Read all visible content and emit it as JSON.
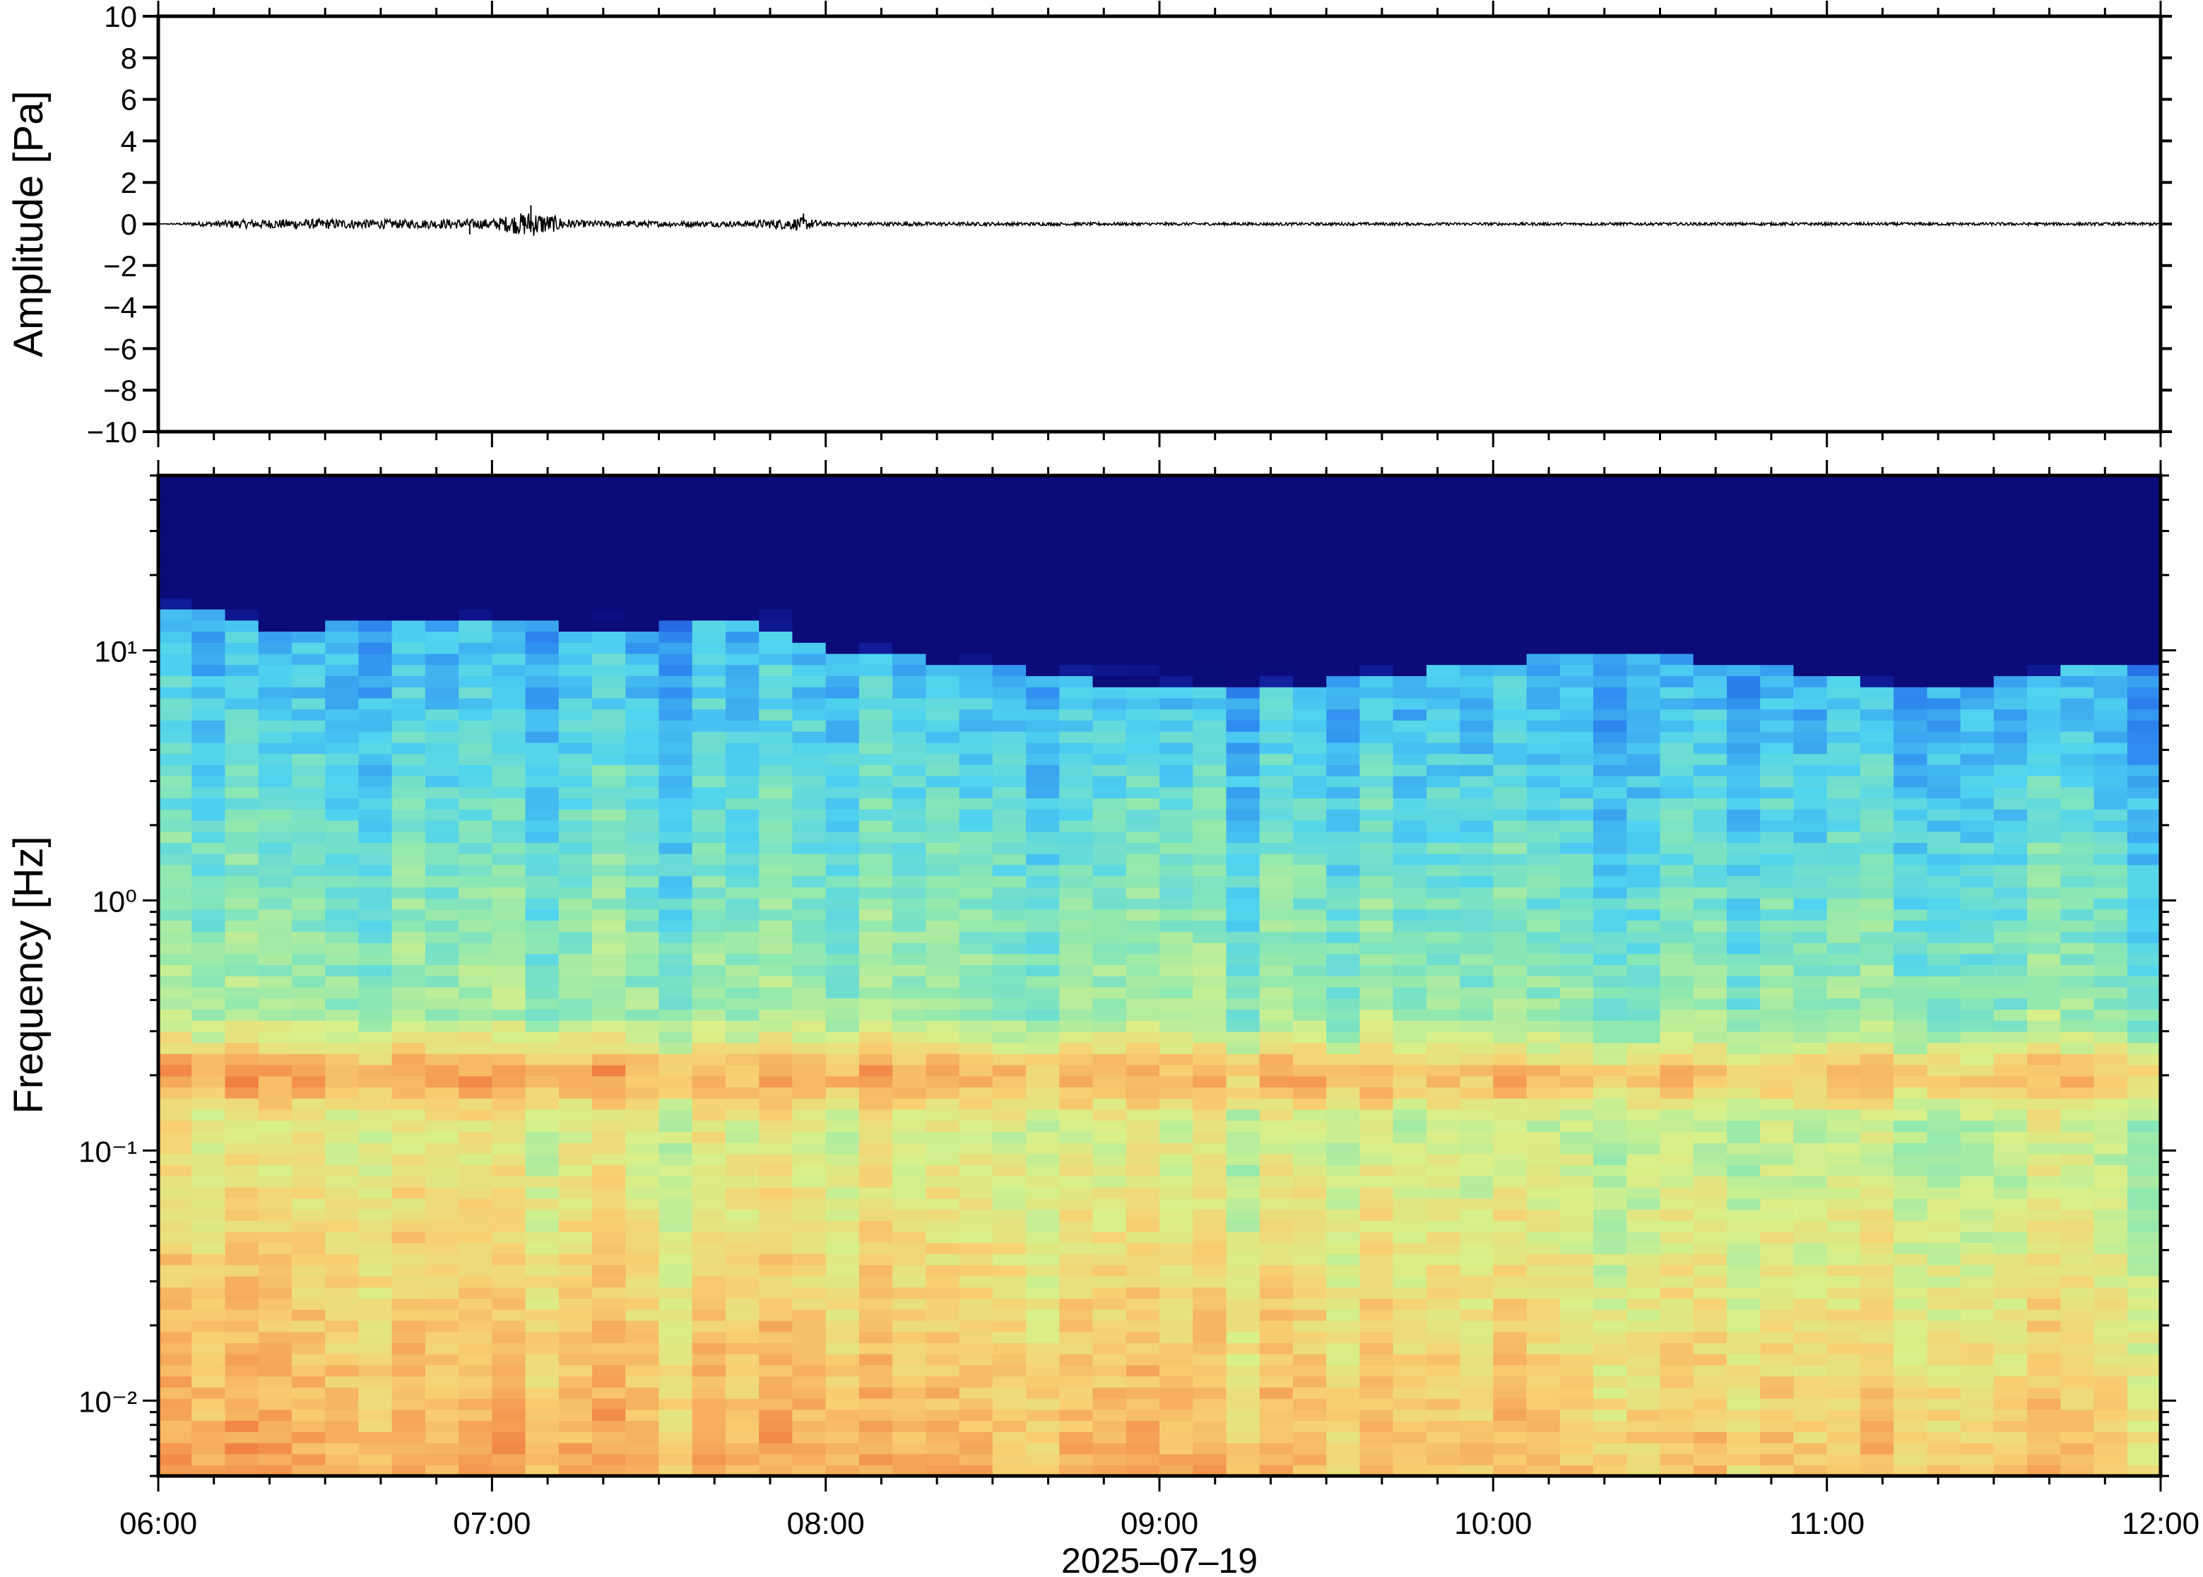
{
  "chart_data": [
    {
      "type": "line",
      "panel": "waveform",
      "ylabel": "Amplitude [Pa]",
      "ylim": [
        -10,
        10
      ],
      "yticks": [
        10,
        8,
        6,
        4,
        2,
        0,
        -2,
        -4,
        -6,
        -8,
        -10
      ],
      "ytick_labels": [
        "10",
        "8",
        "6",
        "4",
        "2",
        "0",
        "−2",
        "−4",
        "−6",
        "−8",
        "−10"
      ],
      "x_range": [
        "2025-07-19 06:00",
        "2025-07-19 12:00"
      ],
      "series": [
        {
          "x": [
            "06:00",
            "06:15",
            "06:30",
            "06:45",
            "07:00",
            "07:07",
            "07:15",
            "07:30",
            "07:45",
            "07:56",
            "08:00",
            "08:30",
            "09:00",
            "09:30",
            "10:00",
            "10:30",
            "11:00",
            "11:30",
            "12:00"
          ],
          "y": [
            0.0,
            0.3,
            0.35,
            0.3,
            0.35,
            0.9,
            0.25,
            0.2,
            0.2,
            0.45,
            0.15,
            0.12,
            0.1,
            0.1,
            0.1,
            0.1,
            0.1,
            0.1,
            0.1
          ]
        }
      ],
      "line_color": "#000000"
    },
    {
      "type": "heatmap",
      "panel": "spectrogram",
      "ylabel": "Frequency [Hz]",
      "yscale": "log",
      "ylim": [
        0.005,
        50
      ],
      "yticks": [
        0.01,
        0.1,
        1,
        10
      ],
      "ytick_labels": [
        "10⁻²",
        "10⁻¹",
        "10⁰",
        "10¹"
      ],
      "xlabel": "2025–07–19",
      "xticks": [
        "06:00",
        "07:00",
        "08:00",
        "09:00",
        "10:00",
        "11:00",
        "12:00"
      ],
      "x_range": [
        "2025-07-19 06:00",
        "2025-07-19 12:00"
      ],
      "colormap": [
        "#0b0b7a",
        "#1a3fd6",
        "#2f8df0",
        "#4fd3f0",
        "#8ee8b0",
        "#d8f08a",
        "#f8d070",
        "#f49a50",
        "#e8502a"
      ],
      "microbaram_peak_hz": 0.2,
      "high_freq_cutoff_hz": [
        15,
        12,
        14,
        13,
        12,
        14,
        10,
        9,
        8,
        7,
        7,
        8,
        9,
        10,
        9,
        8,
        7,
        8,
        9
      ]
    }
  ]
}
